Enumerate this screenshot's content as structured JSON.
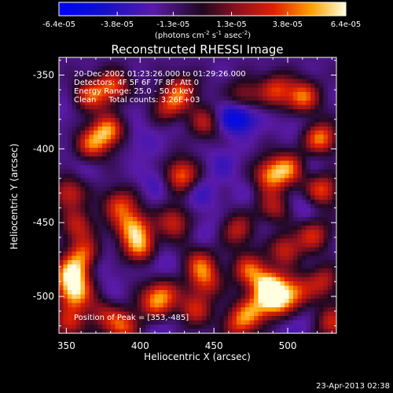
{
  "chart_data": {
    "type": "heatmap",
    "title": "Reconstructed RHESSI Image",
    "xlabel": "Heliocentric X (arcsec)",
    "ylabel": "Heliocentric Y (arcsec)",
    "xlim": [
      345,
      533
    ],
    "ylim": [
      -525,
      -338
    ],
    "x_ticks": [
      350,
      400,
      450,
      500
    ],
    "y_ticks": [
      -350,
      -400,
      -450,
      -500
    ],
    "colorbar": {
      "min": -6.4e-05,
      "max": 6.4e-05,
      "tick_values": [
        -6.4e-05,
        -3.8e-05,
        -1.3e-05,
        1.3e-05,
        3.8e-05,
        6.4e-05
      ],
      "tick_labels": [
        "-6.4e-05",
        "-3.8e-05",
        "-1.3e-05",
        "1.3e-05",
        "3.8e-05",
        "6.4e-05"
      ],
      "units_prefix": "(photons cm",
      "units_exp1": "-2",
      "units_mid": " s",
      "units_exp2": "-1",
      "units_mid2": " asec",
      "units_exp3": "-2",
      "units_suffix": ")"
    },
    "annotations": [
      "20-Dec-2002 01:23:26.000 to 01:29:26.000",
      "Detectors: 4F 5F 6F 7F 8F, Att 0",
      "Energy Range: 25.0 - 50.0 keV",
      "Clean     Total counts: 3.26E+03"
    ],
    "peak_label": "Position of Peak = [353,-485]",
    "footer": "23-Apr-2013 02:38",
    "blobs": [
      {
        "x": 353,
        "y": -485,
        "v": 6.4e-05
      },
      {
        "x": 356,
        "y": -498,
        "v": 5.8e-05
      },
      {
        "x": 362,
        "y": -472,
        "v": 4.6e-05
      },
      {
        "x": 352,
        "y": -430,
        "v": 3.6e-05
      },
      {
        "x": 358,
        "y": -452,
        "v": 3e-05
      },
      {
        "x": 352,
        "y": -518,
        "v": 3.2e-05
      },
      {
        "x": 395,
        "y": -453,
        "v": 5.4e-05
      },
      {
        "x": 400,
        "y": -467,
        "v": 5e-05
      },
      {
        "x": 386,
        "y": -438,
        "v": 4e-05
      },
      {
        "x": 378,
        "y": -388,
        "v": 5.8e-05
      },
      {
        "x": 366,
        "y": -398,
        "v": 4.2e-05
      },
      {
        "x": 366,
        "y": -364,
        "v": 4e-05
      },
      {
        "x": 382,
        "y": -358,
        "v": 4.4e-05
      },
      {
        "x": 388,
        "y": -520,
        "v": 4.6e-05
      },
      {
        "x": 375,
        "y": -510,
        "v": 3e-05
      },
      {
        "x": 409,
        "y": -505,
        "v": 3.2e-05
      },
      {
        "x": 416,
        "y": -498,
        "v": 3.4e-05
      },
      {
        "x": 428,
        "y": -418,
        "v": 5.4e-05
      },
      {
        "x": 423,
        "y": -450,
        "v": 3.6e-05
      },
      {
        "x": 440,
        "y": -478,
        "v": 3.6e-05
      },
      {
        "x": 444,
        "y": -490,
        "v": 3.6e-05
      },
      {
        "x": 437,
        "y": -509,
        "v": 3.4e-05
      },
      {
        "x": 420,
        "y": -372,
        "v": 4e-05
      },
      {
        "x": 428,
        "y": -360,
        "v": 3.4e-05
      },
      {
        "x": 444,
        "y": -382,
        "v": 3e-05
      },
      {
        "x": 466,
        "y": -455,
        "v": 3.2e-05
      },
      {
        "x": 474,
        "y": -482,
        "v": 4.4e-05
      },
      {
        "x": 487,
        "y": -493,
        "v": 6e-05
      },
      {
        "x": 492,
        "y": -503,
        "v": 5.8e-05
      },
      {
        "x": 476,
        "y": -510,
        "v": 4e-05
      },
      {
        "x": 505,
        "y": -497,
        "v": 3.8e-05
      },
      {
        "x": 490,
        "y": -440,
        "v": 3e-05
      },
      {
        "x": 498,
        "y": -468,
        "v": 3.4e-05
      },
      {
        "x": 488,
        "y": -418,
        "v": 5e-05
      },
      {
        "x": 501,
        "y": -413,
        "v": 4.4e-05
      },
      {
        "x": 510,
        "y": -365,
        "v": 5.2e-05
      },
      {
        "x": 492,
        "y": -360,
        "v": 3.8e-05
      },
      {
        "x": 522,
        "y": -393,
        "v": 5.6e-05
      },
      {
        "x": 523,
        "y": -428,
        "v": 4.6e-05
      },
      {
        "x": 517,
        "y": -458,
        "v": 3.6e-05
      },
      {
        "x": 524,
        "y": -490,
        "v": 3e-05
      },
      {
        "x": 530,
        "y": -518,
        "v": 3.4e-05
      },
      {
        "x": 470,
        "y": -365,
        "v": 3e-05
      },
      {
        "x": 466,
        "y": -519,
        "v": 3.2e-05
      },
      {
        "x": 469,
        "y": -378,
        "v": -6e-05
      },
      {
        "x": 459,
        "y": -378,
        "v": -4e-05
      },
      {
        "x": 440,
        "y": -430,
        "v": -3.6e-05
      },
      {
        "x": 380,
        "y": -505,
        "v": -3.6e-05
      },
      {
        "x": 372,
        "y": -478,
        "v": -3.4e-05
      },
      {
        "x": 413,
        "y": -478,
        "v": -3.6e-05
      },
      {
        "x": 411,
        "y": -422,
        "v": -3.4e-05
      },
      {
        "x": 400,
        "y": -395,
        "v": -3e-05
      },
      {
        "x": 456,
        "y": -410,
        "v": -3.2e-05
      },
      {
        "x": 413,
        "y": -525,
        "v": -3e-05
      },
      {
        "x": 423,
        "y": -380,
        "v": -3e-05
      },
      {
        "x": 445,
        "y": -455,
        "v": -2.8e-05
      },
      {
        "x": 511,
        "y": -440,
        "v": -3.6e-05
      },
      {
        "x": 517,
        "y": -410,
        "v": -3e-05
      },
      {
        "x": 505,
        "y": -382,
        "v": -3e-05
      },
      {
        "x": 360,
        "y": -410,
        "v": -3e-05
      },
      {
        "x": 350,
        "y": -375,
        "v": -2.6e-05
      },
      {
        "x": 505,
        "y": -520,
        "v": -3e-05
      },
      {
        "x": 485,
        "y": -455,
        "v": -2.6e-05
      },
      {
        "x": 435,
        "y": -490,
        "v": -2.4e-05
      },
      {
        "x": 472,
        "y": -430,
        "v": -2.4e-05
      },
      {
        "x": 390,
        "y": -370,
        "v": -2.4e-05
      }
    ]
  }
}
